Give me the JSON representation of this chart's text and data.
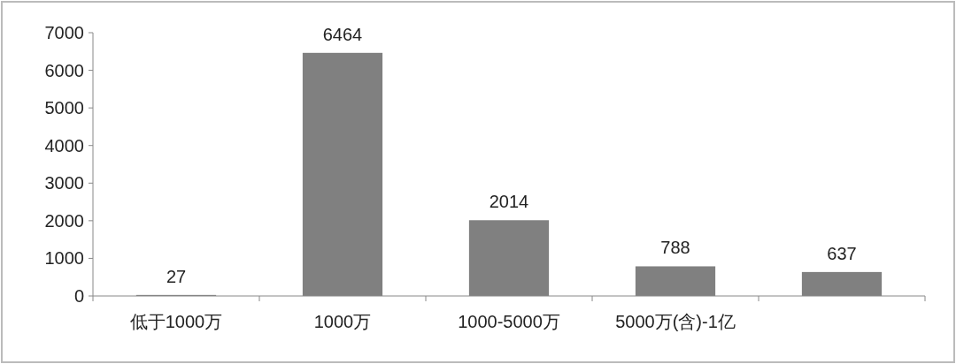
{
  "chart_data": {
    "type": "bar",
    "categories": [
      "低于1000万",
      "1000万",
      "1000-5000万",
      "5000万(含)-1亿",
      null
    ],
    "values": [
      27,
      6464,
      2014,
      788,
      637
    ],
    "color": "#808080",
    "ylim": [
      0,
      7000
    ],
    "yticks": [
      0,
      1000,
      2000,
      3000,
      4000,
      5000,
      6000,
      7000
    ],
    "data_labels": true
  }
}
